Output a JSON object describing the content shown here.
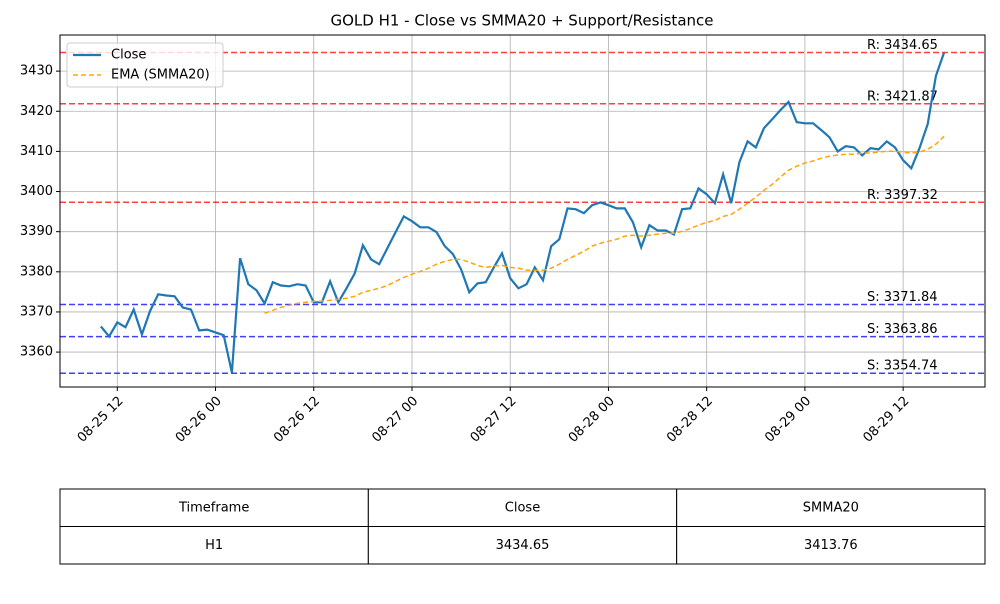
{
  "chart_data": {
    "type": "line",
    "title": "GOLD H1 - Close vs SMMA20 + Support/Resistance",
    "x": [
      "08-25 10",
      "08-25 11",
      "08-25 12",
      "08-25 13",
      "08-25 14",
      "08-25 15",
      "08-25 16",
      "08-25 17",
      "08-25 18",
      "08-25 19",
      "08-25 20",
      "08-25 21",
      "08-25 22",
      "08-25 23",
      "08-26 00",
      "08-26 01",
      "08-26 02",
      "08-26 03",
      "08-26 04",
      "08-26 05",
      "08-26 06",
      "08-26 07",
      "08-26 08",
      "08-26 09",
      "08-26 10",
      "08-26 11",
      "08-26 12",
      "08-26 13",
      "08-26 14",
      "08-26 15",
      "08-26 16",
      "08-26 17",
      "08-26 18",
      "08-26 19",
      "08-26 20",
      "08-26 21",
      "08-26 22",
      "08-26 23",
      "08-27 00",
      "08-27 01",
      "08-27 02",
      "08-27 03",
      "08-27 04",
      "08-27 05",
      "08-27 06",
      "08-27 07",
      "08-27 08",
      "08-27 09",
      "08-27 10",
      "08-27 11",
      "08-27 12",
      "08-27 13",
      "08-27 14",
      "08-27 15",
      "08-27 16",
      "08-27 17",
      "08-27 18",
      "08-27 19",
      "08-27 20",
      "08-27 21",
      "08-27 22",
      "08-27 23",
      "08-28 00",
      "08-28 01",
      "08-28 02",
      "08-28 03",
      "08-28 04",
      "08-28 05",
      "08-28 06",
      "08-28 07",
      "08-28 08",
      "08-28 09",
      "08-28 10",
      "08-28 11",
      "08-28 12",
      "08-28 13",
      "08-28 14",
      "08-28 15",
      "08-28 16",
      "08-28 17",
      "08-28 18",
      "08-28 19",
      "08-28 20",
      "08-28 21",
      "08-28 22",
      "08-28 23",
      "08-29 00",
      "08-29 01",
      "08-29 02",
      "08-29 03",
      "08-29 04",
      "08-29 05",
      "08-29 06",
      "08-29 07",
      "08-29 08",
      "08-29 09",
      "08-29 10",
      "08-29 11",
      "08-29 12",
      "08-29 13",
      "08-29 14",
      "08-29 15",
      "08-29 16",
      "08-29 17"
    ],
    "series": [
      {
        "name": "Close",
        "color": "#1f77b4",
        "dash": false,
        "values": [
          3366.4,
          3363.9,
          3367.4,
          3366.2,
          3370.6,
          3364.4,
          3370.2,
          3374.4,
          3374.1,
          3373.9,
          3371.1,
          3370.6,
          3365.4,
          3365.6,
          3364.9,
          3364.2,
          3354.9,
          3383.4,
          3376.9,
          3375.4,
          3372.1,
          3377.4,
          3376.6,
          3376.4,
          3376.9,
          3376.6,
          3372.4,
          3372.4,
          3377.6,
          3372.4,
          3375.9,
          3379.6,
          3386.6,
          3383.1,
          3381.9,
          3385.9,
          3389.9,
          3393.8,
          3392.6,
          3391.1,
          3391.1,
          3389.9,
          3386.4,
          3384.4,
          3380.6,
          3374.9,
          3377.1,
          3377.4,
          3381.1,
          3384.6,
          3378.4,
          3375.9,
          3376.9,
          3381.1,
          3377.9,
          3386.4,
          3388.1,
          3395.8,
          3395.6,
          3394.6,
          3396.6,
          3397.3,
          3396.6,
          3395.8,
          3395.8,
          3392.3,
          3386.1,
          3391.6,
          3390.3,
          3390.3,
          3389.3,
          3395.6,
          3395.8,
          3400.8,
          3399.3,
          3397.1,
          3404.3,
          3397.1,
          3407.3,
          3412.5,
          3411.0,
          3415.8,
          3418.0,
          3420.3,
          3422.3,
          3417.3,
          3417.0,
          3417.0,
          3415.3,
          3413.5,
          3410.0,
          3411.3,
          3411.0,
          3409.0,
          3410.8,
          3410.5,
          3412.5,
          3411.0,
          3407.8,
          3405.8,
          3410.8,
          3416.8,
          3428.8,
          3434.65
        ]
      },
      {
        "name": "EMA (SMMA20)",
        "color": "#ffa500",
        "dash": true,
        "values": [
          null,
          null,
          null,
          null,
          null,
          null,
          null,
          null,
          null,
          null,
          null,
          null,
          null,
          null,
          null,
          null,
          null,
          null,
          null,
          null,
          3369.65,
          3370.4,
          3371.15,
          3371.65,
          3372.14,
          3372.4,
          3372.64,
          3372.64,
          3372.9,
          3373.14,
          3373.4,
          3373.9,
          3374.9,
          3375.4,
          3375.9,
          3376.6,
          3377.6,
          3378.6,
          3379.4,
          3380.1,
          3380.9,
          3381.9,
          3382.6,
          3383.1,
          3383.1,
          3382.4,
          3381.6,
          3381.1,
          3381.4,
          3381.6,
          3381.1,
          3380.9,
          3380.4,
          3380.4,
          3380.4,
          3380.9,
          3381.9,
          3383.1,
          3384.1,
          3385.1,
          3386.4,
          3387.1,
          3387.6,
          3388.1,
          3388.9,
          3389.1,
          3388.9,
          3389.1,
          3389.4,
          3389.6,
          3389.6,
          3390.1,
          3390.8,
          3391.6,
          3392.3,
          3392.8,
          3393.8,
          3394.3,
          3395.6,
          3397.1,
          3398.6,
          3400.3,
          3401.8,
          3403.6,
          3405.3,
          3406.3,
          3407.1,
          3407.6,
          3408.3,
          3408.8,
          3409.1,
          3409.3,
          3409.3,
          3409.6,
          3409.6,
          3409.8,
          3410.05,
          3410.05,
          3409.8,
          3409.6,
          3409.8,
          3410.55,
          3411.8,
          3413.76
        ]
      }
    ],
    "levels": [
      {
        "value": 3434.65,
        "label": "R: 3434.65",
        "color": "#ff0000"
      },
      {
        "value": 3421.87,
        "label": "R: 3421.87",
        "color": "#ff0000"
      },
      {
        "value": 3397.32,
        "label": "R: 3397.32",
        "color": "#ff0000"
      },
      {
        "value": 3371.84,
        "label": "S: 3371.84",
        "color": "#0000ff"
      },
      {
        "value": 3363.86,
        "label": "S: 3363.86",
        "color": "#0000ff"
      },
      {
        "value": 3354.74,
        "label": "S: 3354.74",
        "color": "#0000ff"
      }
    ],
    "xlim": [
      "08-25 05",
      "08-29 22"
    ],
    "xticks": [
      "08-25 12",
      "08-26 00",
      "08-26 12",
      "08-27 00",
      "08-27 12",
      "08-28 00",
      "08-28 12",
      "08-29 00",
      "08-29 12"
    ],
    "ylim": [
      3351.3,
      3439
    ],
    "yticks": [
      3360,
      3370,
      3380,
      3390,
      3400,
      3410,
      3420,
      3430
    ],
    "grid": true,
    "legend": "upper left"
  },
  "table": {
    "header": [
      "Timeframe",
      "Close",
      "SMMA20"
    ],
    "rows": [
      [
        "H1",
        "3434.65",
        "3413.76"
      ]
    ]
  }
}
